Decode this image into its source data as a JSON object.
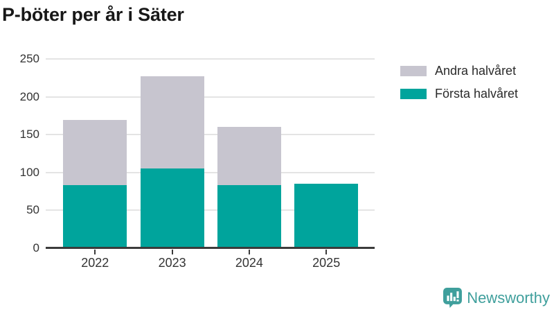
{
  "title": "P-böter per år i Säter",
  "legend": {
    "items": [
      {
        "label": "Andra halvåret",
        "color": "#c7c5cf"
      },
      {
        "label": "Första halvåret",
        "color": "#00a49c"
      }
    ]
  },
  "logo": {
    "text": "Newsworthy"
  },
  "colors": {
    "first_half": "#00a49c",
    "second_half": "#c7c5cf",
    "grid": "#e4e4e4",
    "axis": "#3b3b3b",
    "logo": "#3f9f9c"
  },
  "chart_data": {
    "type": "bar",
    "stacked": true,
    "title": "P-böter per år i Säter",
    "categories": [
      "2022",
      "2023",
      "2024",
      "2025"
    ],
    "series": [
      {
        "name": "Första halvåret",
        "color": "#00a49c",
        "values": [
          83,
          105,
          83,
          85
        ]
      },
      {
        "name": "Andra halvåret",
        "color": "#c7c5cf",
        "values": [
          86,
          122,
          77,
          0
        ]
      }
    ],
    "totals": [
      169,
      227,
      160,
      85
    ],
    "xlabel": "",
    "ylabel": "",
    "ylim": [
      0,
      250
    ],
    "yticks": [
      0,
      50,
      100,
      150,
      200,
      250
    ],
    "grid": true,
    "legend_position": "top-right"
  }
}
